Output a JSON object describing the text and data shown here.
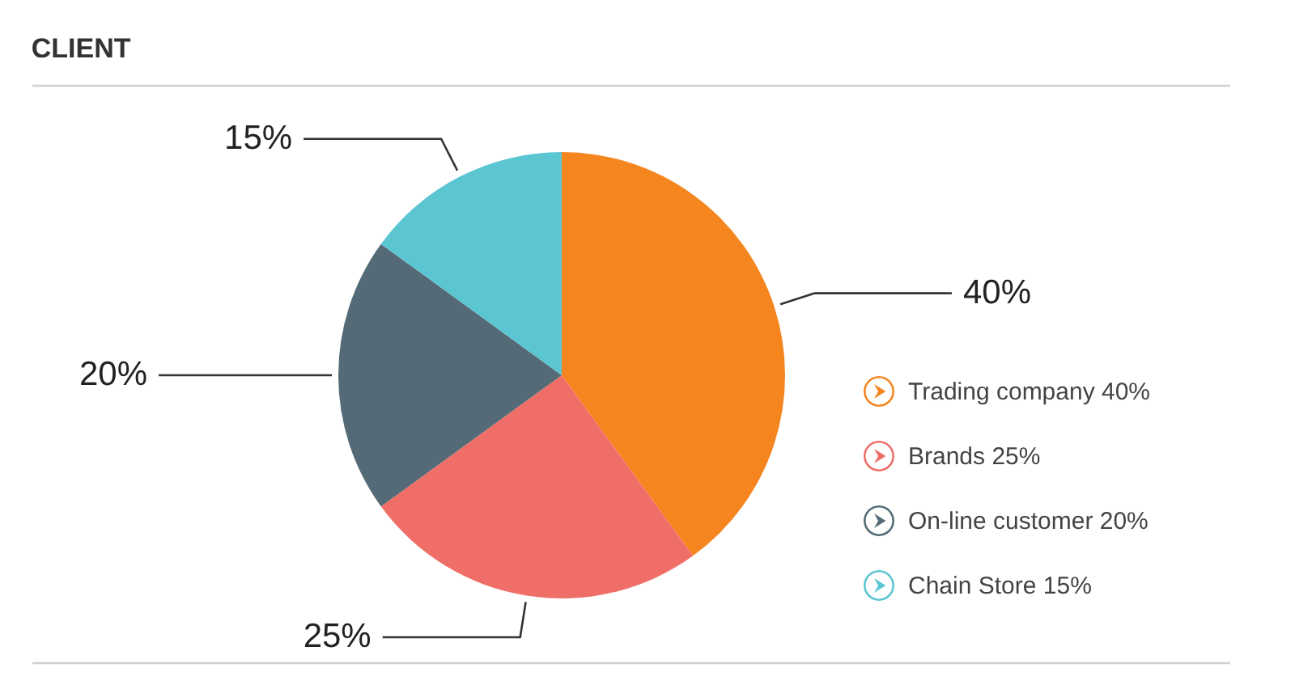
{
  "chart_data": {
    "type": "pie",
    "title": "CLIENT",
    "categories": [
      "Trading company",
      "Brands",
      "On-line customer",
      "Chain Store"
    ],
    "values": [
      40,
      25,
      20,
      15
    ],
    "value_labels": [
      "40%",
      "25%",
      "20%",
      "15%"
    ],
    "colors": [
      "#f5861f",
      "#ef6f68",
      "#546b77",
      "#5cc5d2"
    ],
    "legend": "right"
  }
}
